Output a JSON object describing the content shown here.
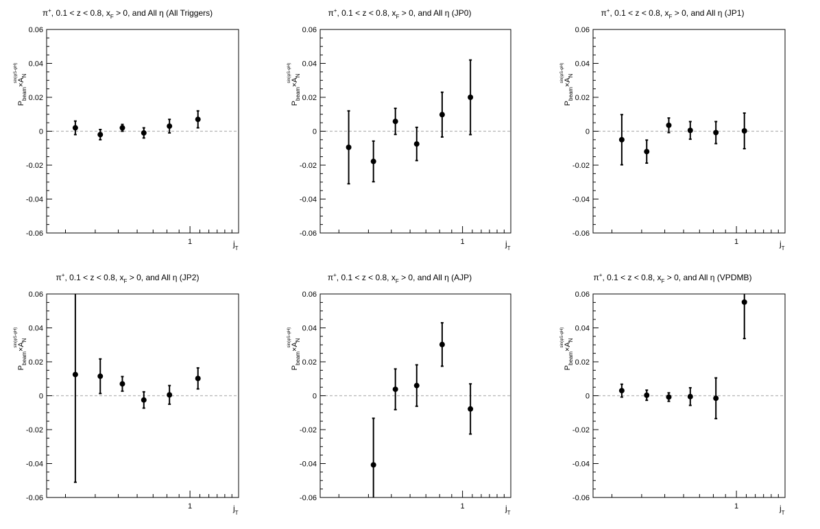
{
  "axis_common": {
    "ylabel_main": "P",
    "ylabel_sub_beam": "beam",
    "ylabel_times": "×A",
    "ylabel_sub_N": "N",
    "ylabel_sup": "sin(φ",
    "ylabel_sup_rest": "-φ",
    "ylabel_sup_end": ")",
    "xlabel_main": "j",
    "xlabel_sub": "T",
    "x_major_tick_label": "1"
  },
  "chart_data": [
    {
      "type": "scatter",
      "title": "π+, 0.1 < z < 0.8, xF > 0, and All η (All Triggers)",
      "title_parts": {
        "pi": "π",
        "sup": "+",
        "mid": ", 0.1 < z < 0.8, x",
        "sub": "F",
        "rest": " > 0, and All η (All Triggers)"
      },
      "xlabel": "jT",
      "ylabel": "Pbeam×AN sin(φS-φH)",
      "x_scale": "log",
      "xlim": [
        0.25,
        1.6
      ],
      "ylim": [
        -0.06,
        0.06
      ],
      "yticks": [
        -0.06,
        -0.04,
        -0.02,
        0,
        0.02,
        0.04,
        0.06
      ],
      "ytick_labels": [
        "-0.06",
        "-0.04",
        "-0.02",
        "0",
        "0.02",
        "0.04",
        "0.06"
      ],
      "zero_line": "dashed",
      "series": [
        {
          "x": [
            0.33,
            0.42,
            0.52,
            0.64,
            0.82,
            1.08
          ],
          "y": [
            0.002,
            -0.002,
            0.002,
            -0.001,
            0.003,
            0.007
          ],
          "yerr": [
            0.004,
            0.003,
            0.002,
            0.003,
            0.004,
            0.005
          ]
        }
      ]
    },
    {
      "type": "scatter",
      "title": "π+, 0.1 < z < 0.8, xF > 0, and All η (JP0)",
      "title_parts": {
        "pi": "π",
        "sup": "+",
        "mid": ", 0.1 < z < 0.8, x",
        "sub": "F",
        "rest": " > 0, and All η (JP0)"
      },
      "xlabel": "jT",
      "ylabel": "Pbeam×AN sin(φS-φH)",
      "x_scale": "log",
      "xlim": [
        0.25,
        1.6
      ],
      "ylim": [
        -0.06,
        0.06
      ],
      "yticks": [
        -0.06,
        -0.04,
        -0.02,
        0,
        0.02,
        0.04,
        0.06
      ],
      "ytick_labels": [
        "-0.06",
        "-0.04",
        "-0.02",
        "0",
        "0.02",
        "0.04",
        "0.06"
      ],
      "zero_line": "dashed",
      "series": [
        {
          "x": [
            0.33,
            0.42,
            0.52,
            0.64,
            0.82,
            1.08
          ],
          "y": [
            -0.0095,
            -0.0178,
            0.0058,
            -0.0075,
            0.0098,
            0.02
          ],
          "yerr": [
            0.0215,
            0.012,
            0.0077,
            0.0098,
            0.0132,
            0.022
          ]
        }
      ]
    },
    {
      "type": "scatter",
      "title": "π+, 0.1 < z < 0.8, xF > 0, and All η (JP1)",
      "title_parts": {
        "pi": "π",
        "sup": "+",
        "mid": ", 0.1 < z < 0.8, x",
        "sub": "F",
        "rest": " > 0, and All η (JP1)"
      },
      "xlabel": "jT",
      "ylabel": "Pbeam×AN sin(φS-φH)",
      "x_scale": "log",
      "xlim": [
        0.25,
        1.6
      ],
      "ylim": [
        -0.06,
        0.06
      ],
      "yticks": [
        -0.06,
        -0.04,
        -0.02,
        0,
        0.02,
        0.04,
        0.06
      ],
      "ytick_labels": [
        "-0.06",
        "-0.04",
        "-0.02",
        "0",
        "0.02",
        "0.04",
        "0.06"
      ],
      "zero_line": "dashed",
      "series": [
        {
          "x": [
            0.33,
            0.42,
            0.52,
            0.64,
            0.82,
            1.08
          ],
          "y": [
            -0.005,
            -0.012,
            0.0035,
            0.0005,
            -0.0008,
            0.0002
          ],
          "yerr": [
            0.0148,
            0.0068,
            0.0043,
            0.0052,
            0.0065,
            0.0105
          ]
        }
      ]
    },
    {
      "type": "scatter",
      "title": "π+, 0.1 < z < 0.8, xF > 0, and All η (JP2)",
      "title_parts": {
        "pi": "π",
        "sup": "+",
        "mid": ", 0.1 < z < 0.8, x",
        "sub": "F",
        "rest": " > 0, and All η (JP2)"
      },
      "xlabel": "jT",
      "ylabel": "Pbeam×AN sin(φS-φH)",
      "x_scale": "log",
      "xlim": [
        0.25,
        1.6
      ],
      "ylim": [
        -0.06,
        0.06
      ],
      "yticks": [
        -0.06,
        -0.04,
        -0.02,
        0,
        0.02,
        0.04,
        0.06
      ],
      "ytick_labels": [
        "-0.06",
        "-0.04",
        "-0.02",
        "0",
        "0.02",
        "0.04",
        "0.06"
      ],
      "zero_line": "dashed",
      "series": [
        {
          "x": [
            0.33,
            0.42,
            0.52,
            0.64,
            0.82,
            1.08
          ],
          "y": [
            0.0125,
            0.0115,
            0.007,
            -0.0025,
            0.0005,
            0.0102
          ],
          "yerr": [
            0.0635,
            0.0102,
            0.0043,
            0.0048,
            0.0055,
            0.0062
          ]
        }
      ]
    },
    {
      "type": "scatter",
      "title": "π+, 0.1 < z < 0.8, xF > 0, and All η (AJP)",
      "title_parts": {
        "pi": "π",
        "sup": "+",
        "mid": ", 0.1 < z < 0.8, x",
        "sub": "F",
        "rest": " > 0, and All η (AJP)"
      },
      "xlabel": "jT",
      "ylabel": "Pbeam×AN sin(φS-φH)",
      "x_scale": "log",
      "xlim": [
        0.25,
        1.6
      ],
      "ylim": [
        -0.06,
        0.06
      ],
      "yticks": [
        -0.06,
        -0.04,
        -0.02,
        0,
        0.02,
        0.04,
        0.06
      ],
      "ytick_labels": [
        "-0.06",
        "-0.04",
        "-0.02",
        "0",
        "0.02",
        "0.04",
        "0.06"
      ],
      "zero_line": "dashed",
      "series": [
        {
          "x": [
            0.42,
            0.52,
            0.64,
            0.82,
            1.08
          ],
          "y": [
            -0.0408,
            0.0038,
            0.006,
            0.0302,
            -0.0078
          ],
          "yerr": [
            0.0275,
            0.012,
            0.0122,
            0.0128,
            0.0148
          ]
        }
      ]
    },
    {
      "type": "scatter",
      "title": "π+, 0.1 < z < 0.8, xF > 0, and All η (VPDMB)",
      "title_parts": {
        "pi": "π",
        "sup": "+",
        "mid": ", 0.1 < z < 0.8, x",
        "sub": "F",
        "rest": " > 0, and All η (VPDMB)"
      },
      "xlabel": "jT",
      "ylabel": "Pbeam×AN sin(φS-φH)",
      "x_scale": "log",
      "xlim": [
        0.25,
        1.6
      ],
      "ylim": [
        -0.06,
        0.06
      ],
      "yticks": [
        -0.06,
        -0.04,
        -0.02,
        0,
        0.02,
        0.04,
        0.06
      ],
      "ytick_labels": [
        "-0.06",
        "-0.04",
        "-0.02",
        "0",
        "0.02",
        "0.04",
        "0.06"
      ],
      "zero_line": "dashed",
      "series": [
        {
          "x": [
            0.33,
            0.42,
            0.52,
            0.64,
            0.82,
            1.08
          ],
          "y": [
            0.003,
            0.0003,
            -0.0008,
            -0.0005,
            -0.0015,
            0.0552
          ],
          "yerr": [
            0.0038,
            0.003,
            0.0025,
            0.0052,
            0.012,
            0.0215
          ]
        }
      ]
    }
  ]
}
